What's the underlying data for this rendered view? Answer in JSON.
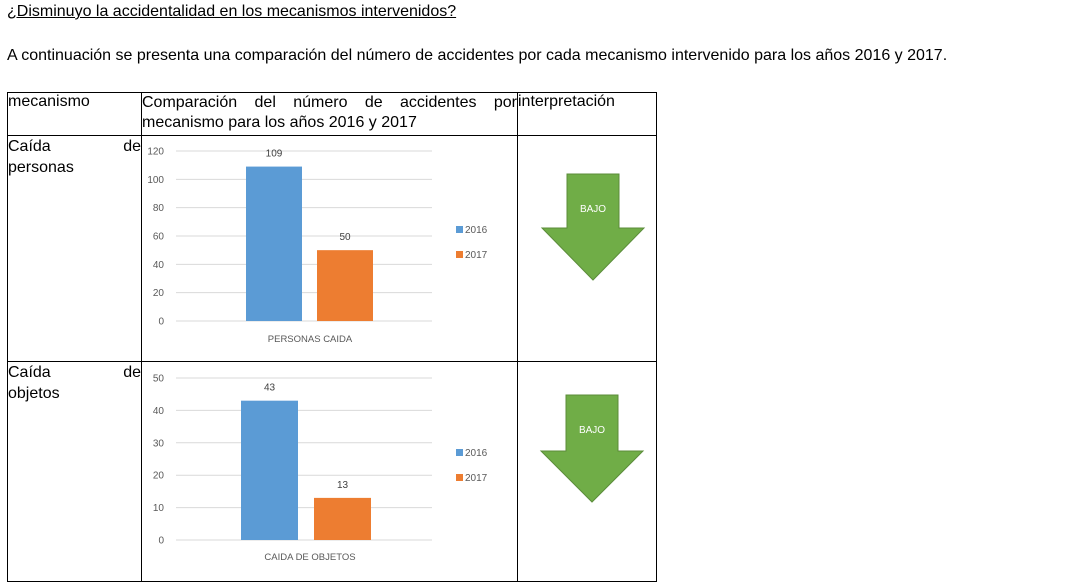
{
  "heading": "¿Disminuyo la accidentalidad en los mecanismos intervenidos?",
  "intro": "A continuación se presenta una comparación del número de accidentes por cada mecanismo intervenido para los años 2016 y 2017.",
  "table": {
    "headers": {
      "mecanismo": "mecanismo",
      "comparacion_line1": "Comparación del número de accidentes por",
      "comparacion_line2": "mecanismo para los años 2016 y 2017",
      "interpretacion": "interpretación"
    },
    "rows": [
      {
        "mech_word1": "Caída",
        "mech_word2": "de",
        "mech_word3": "personas",
        "interpretation": "BAJO",
        "arrow_color": "#70ad47"
      },
      {
        "mech_word1": "Caída",
        "mech_word2": "de",
        "mech_word3": "objetos",
        "interpretation": "BAJO",
        "arrow_color": "#70ad47"
      }
    ]
  },
  "chart_data": [
    {
      "type": "bar",
      "categories": [
        "PERSONAS CAIDA"
      ],
      "series": [
        {
          "name": "2016",
          "values": [
            109
          ],
          "color": "#5b9bd5"
        },
        {
          "name": "2017",
          "values": [
            50
          ],
          "color": "#ed7d31"
        }
      ],
      "yticks": [
        "120",
        "100",
        "80",
        "60",
        "40",
        "20",
        "0"
      ],
      "ylim": [
        0,
        120
      ],
      "grid": true,
      "legend_position": "right"
    },
    {
      "type": "bar",
      "categories": [
        "CAIDA DE OBJETOS"
      ],
      "series": [
        {
          "name": "2016",
          "values": [
            43
          ],
          "color": "#5b9bd5"
        },
        {
          "name": "2017",
          "values": [
            13
          ],
          "color": "#ed7d31"
        }
      ],
      "yticks": [
        "50",
        "40",
        "30",
        "20",
        "10",
        "0"
      ],
      "ylim": [
        0,
        50
      ],
      "grid": true,
      "legend_position": "right"
    }
  ]
}
